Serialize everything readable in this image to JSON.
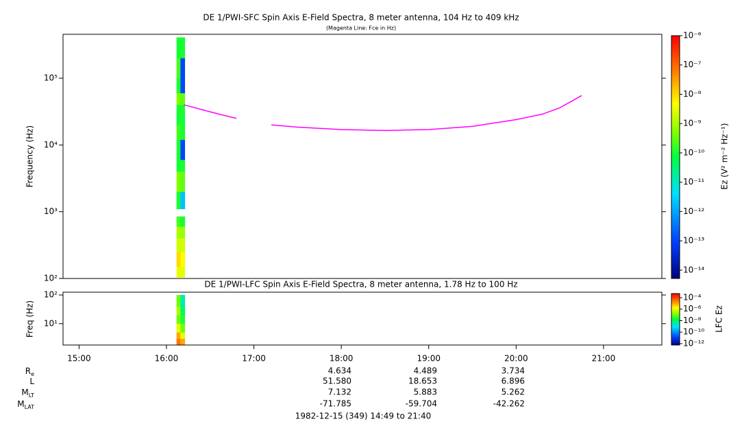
{
  "chart_data": [
    {
      "type": "spectrogram",
      "title": "DE 1/PWI-SFC  Spin Axis E-Field Spectra, 8 meter antenna, 104 Hz to 409 kHz",
      "subtitle": "(Magenta Line: Fce in Hz)",
      "ylabel": "Frequency (Hz)",
      "log_y": true,
      "xlim": [
        14.8167,
        21.6667
      ],
      "ylim": [
        100,
        455000
      ],
      "yticks": [
        {
          "value": 100,
          "label": "10²"
        },
        {
          "value": 1000,
          "label": "10³"
        },
        {
          "value": 10000,
          "label": "10⁴"
        },
        {
          "value": 100000,
          "label": "10⁵"
        }
      ],
      "x": [
        16.115,
        16.16,
        16.21
      ],
      "bins": [
        104,
        150,
        250,
        400,
        600,
        850,
        1100,
        2000,
        4000,
        6000,
        8000,
        12000,
        20000,
        40000,
        60000,
        100000,
        200000,
        409000
      ],
      "z": [
        [
          3e-09,
          1e-08,
          2e-09,
          1e-09,
          2e-10,
          null,
          1e-10,
          5e-10,
          1e-10,
          1e-10,
          1e-10,
          2e-10,
          1e-10,
          5e-10,
          1e-10,
          2e-10,
          1e-10
        ],
        [
          3e-09,
          5e-09,
          2e-09,
          8e-10,
          1e-10,
          null,
          2e-12,
          3e-10,
          1e-10,
          1e-13,
          1e-13,
          1e-10,
          1e-10,
          3e-10,
          1e-13,
          1e-13,
          1e-10
        ]
      ],
      "zlabel": "Ez (V² m⁻² Hz⁻¹)",
      "zlim": [
        5.2e-15,
        1e-06
      ],
      "zticks": [
        {
          "value": 1e-06,
          "label": "10⁻⁶"
        },
        {
          "value": 1e-07,
          "label": "10⁻⁷"
        },
        {
          "value": 1e-08,
          "label": "10⁻⁸"
        },
        {
          "value": 1e-09,
          "label": "10⁻⁹"
        },
        {
          "value": 1e-10,
          "label": "10⁻¹⁰"
        },
        {
          "value": 1e-11,
          "label": "10⁻¹¹"
        },
        {
          "value": 1e-12,
          "label": "10⁻¹²"
        },
        {
          "value": 1e-13,
          "label": "10⁻¹³"
        },
        {
          "value": 1e-14,
          "label": "10⁻¹⁴"
        }
      ],
      "series": [
        {
          "color": "#ff00ff",
          "x": [
            16.2,
            16.4,
            16.6,
            16.8,
            17.0,
            17.2,
            17.5,
            18.0,
            18.5,
            19.0,
            19.5,
            20.0,
            20.3,
            20.5,
            20.75
          ],
          "values": [
            40000,
            34000,
            29000,
            25000,
            null,
            20000,
            18500,
            17000,
            16500,
            17000,
            19000,
            24000,
            29000,
            36000,
            55000
          ]
        }
      ]
    },
    {
      "type": "spectrogram",
      "title": "DE 1/PWI-LFC  Spin Axis E-Field Spectra, 8 meter antenna, 1.78 Hz to 100 Hz",
      "ylabel": "Freq (Hz)",
      "log_y": true,
      "xlim": [
        14.8167,
        21.6667
      ],
      "xticks": [
        {
          "value": 15,
          "label": "15:00"
        },
        {
          "value": 16,
          "label": "16:00"
        },
        {
          "value": 17,
          "label": "17:00"
        },
        {
          "value": 18,
          "label": "18:00"
        },
        {
          "value": 19,
          "label": "19:00"
        },
        {
          "value": 20,
          "label": "20:00"
        },
        {
          "value": 21,
          "label": "21:00"
        }
      ],
      "ylim": [
        1.8,
        125
      ],
      "yticks": [
        {
          "value": 10,
          "label": "10¹"
        },
        {
          "value": 100,
          "label": "10²"
        }
      ],
      "x": [
        16.115,
        16.16,
        16.21
      ],
      "bins": [
        1.78,
        3,
        5,
        10,
        20,
        40,
        70,
        100
      ],
      "z": [
        [
          3e-05,
          1e-05,
          1e-06,
          1e-07,
          3e-07,
          1e-07,
          1e-07
        ],
        [
          1e-05,
          1e-06,
          1e-07,
          3e-08,
          1e-08,
          3e-09,
          3e-09
        ]
      ],
      "zlabel": "LFC Ez",
      "zlim": [
        5.7e-13,
        0.00052
      ],
      "zticks": [
        {
          "value": 0.0001,
          "label": "10⁻⁴"
        },
        {
          "value": 1e-06,
          "label": "10⁻⁶"
        },
        {
          "value": 1e-08,
          "label": "10⁻⁸"
        },
        {
          "value": 1e-10,
          "label": "10⁻¹⁰"
        },
        {
          "value": 1e-12,
          "label": "10⁻¹²"
        }
      ]
    }
  ],
  "ephemeris": [
    {
      "label": "R",
      "sub": "e",
      "values": [
        "4.634",
        "4.489",
        "3.734"
      ]
    },
    {
      "label": "L",
      "values": [
        "51.580",
        "18.653",
        "6.896"
      ]
    },
    {
      "label": "M",
      "sub": "LT",
      "values": [
        "7.132",
        "5.883",
        "5.262"
      ]
    },
    {
      "label": "M",
      "sub": "LAT",
      "values": [
        "-71.785",
        "-59.704",
        "-42.262"
      ]
    }
  ],
  "footer": "1982-12-15 (349) 14:49 to 21:40"
}
